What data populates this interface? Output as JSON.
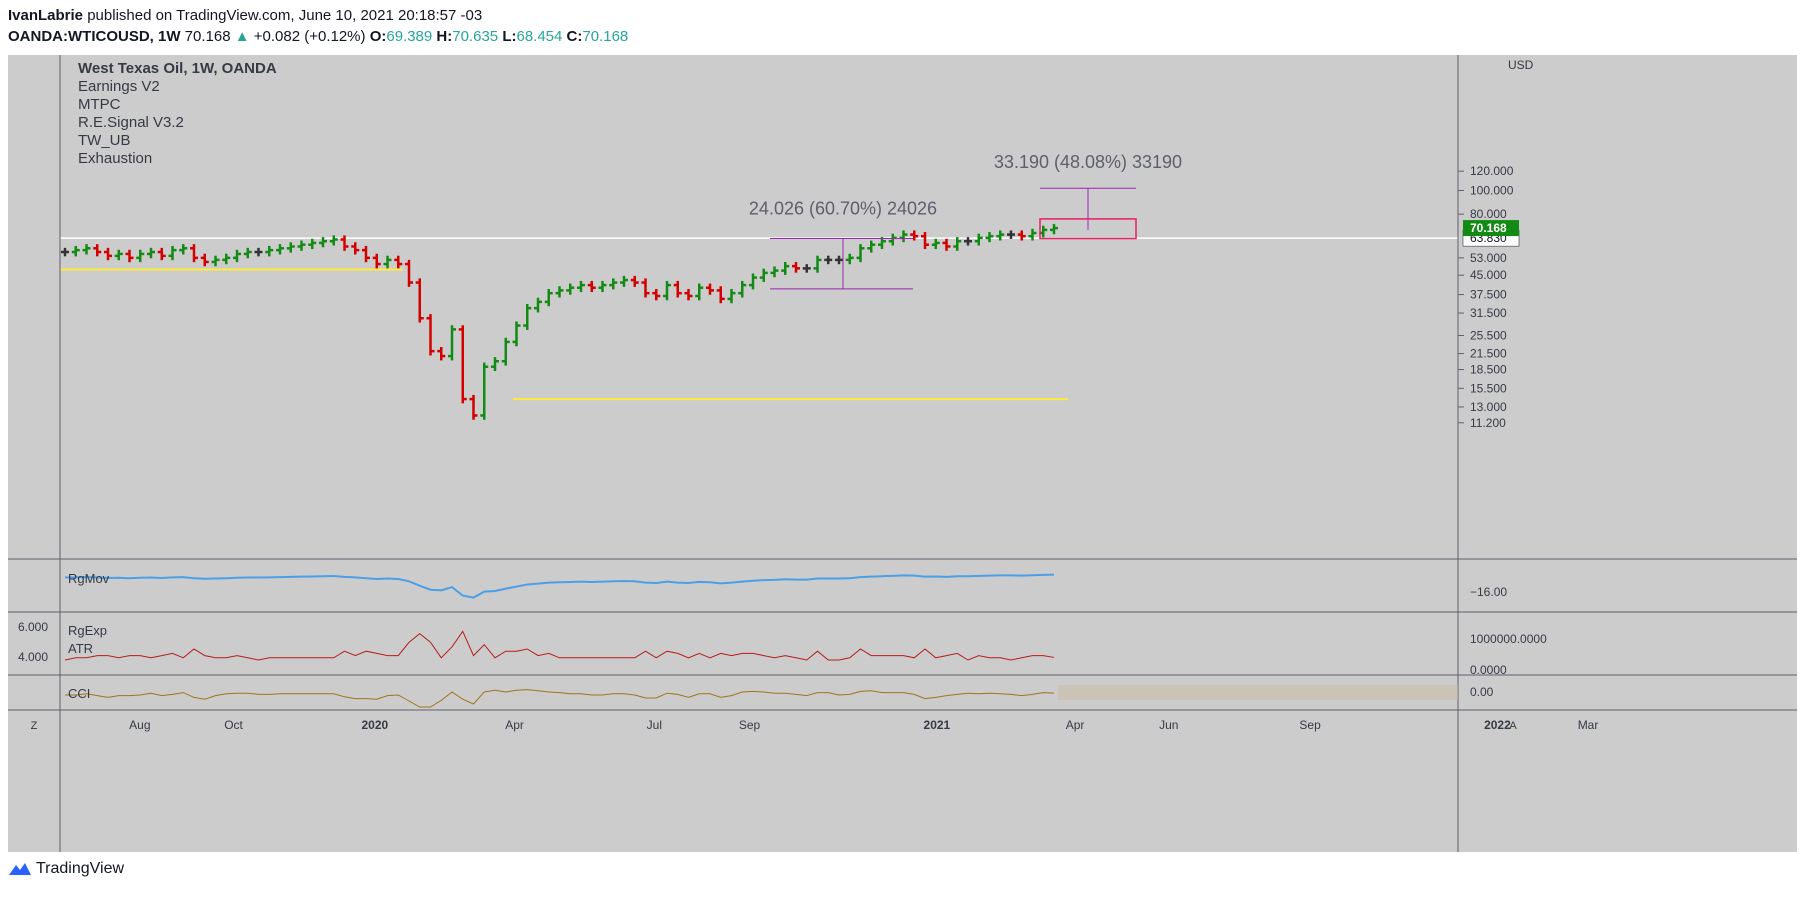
{
  "header": {
    "author": "IvanLabrie",
    "published_text": "published on TradingView.com, June 10, 2021 20:18:57 -03",
    "symbol": "OANDA:WTICOUSD, 1W",
    "last": "70.168",
    "change": "+0.082 (+0.12%)",
    "open_label": "O:",
    "open": "69.389",
    "high_label": "H:",
    "high": "70.635",
    "low_label": "L:",
    "low": "68.454",
    "close_label": "C:",
    "close": "70.168"
  },
  "legend": [
    "West Texas Oil, 1W, OANDA",
    "Earnings V2",
    "MTPC",
    "R.E.Signal V3.2",
    "TW_UB",
    "Exhaustion"
  ],
  "footer": {
    "brand": "TradingView"
  },
  "chart_data": {
    "type": "bar",
    "title": "West Texas Oil, 1W, OANDA",
    "currency_label": "USD",
    "price_scale": "log",
    "price_ticks": [
      11.2,
      13.0,
      15.5,
      18.5,
      21.5,
      25.5,
      31.5,
      37.5,
      45.0,
      53.0,
      63.83,
      80.0,
      100.0,
      120.0
    ],
    "price_tick_labels": [
      "11.200",
      "13.000",
      "15.500",
      "18.500",
      "21.500",
      "25.500",
      "31.500",
      "37.500",
      "45.000",
      "53.000",
      "63.830",
      "80.000",
      "100.000",
      "120.000"
    ],
    "last_price_label": "70.168",
    "horizontal_line_label": "63.830",
    "horizontal_line_value": 63.83,
    "time_labels": [
      "Aug",
      "Oct",
      "2020",
      "Apr",
      "Jul",
      "Sep",
      "2021",
      "Apr",
      "Jun",
      "Sep",
      "2022",
      "Mar"
    ],
    "time_label_dates": [
      "2019-08",
      "2019-10",
      "2020-01",
      "2020-04",
      "2020-07",
      "2020-09",
      "2021-01",
      "2021-04",
      "2021-06",
      "2021-09",
      "2022-01",
      "2022-03"
    ],
    "weekly_closes": [
      56,
      57,
      58,
      56,
      54,
      55,
      53,
      55,
      56,
      54,
      57,
      58,
      53,
      51,
      52,
      53,
      55,
      56,
      56,
      57,
      58,
      59,
      60,
      61,
      62,
      63,
      59,
      57,
      53,
      50,
      52,
      50,
      42,
      30,
      22,
      21,
      27,
      14,
      12,
      19,
      20,
      24,
      28,
      33,
      35,
      38,
      39,
      40,
      41,
      40,
      41,
      42,
      43,
      42,
      38,
      37,
      41,
      38,
      37,
      40,
      39,
      36,
      38,
      41,
      44,
      46,
      47,
      49,
      48,
      48,
      52,
      52,
      52,
      53,
      58,
      60,
      62,
      64,
      66,
      65,
      60,
      61,
      59,
      62,
      62,
      64,
      65,
      66,
      66,
      65,
      67,
      69,
      70.168
    ],
    "measurements": [
      {
        "label": "24.026 (60.70%) 24026",
        "from": 39.58,
        "to": 63.6
      },
      {
        "label": "33.190 (48.08%) 33190",
        "from": 69.0,
        "to": 102.2
      }
    ],
    "support_lines": [
      47.5,
      14.0
    ],
    "indicators": [
      {
        "name": "RgMov",
        "tick_label": "−16.00"
      },
      {
        "name": "RgExp",
        "tick_labels": [
          "6.000",
          "4.000"
        ],
        "right_tick_labels": [
          "1000000.0000",
          "0.0000"
        ]
      },
      {
        "name": "ATR"
      },
      {
        "name": "CCI",
        "tick_label": "0.00"
      }
    ],
    "colors": {
      "up": "#138a13",
      "down": "#d30000",
      "neutral": "#333333",
      "sma": "#ffeb3b",
      "measure": "#9c27b0",
      "target_box": "#e91e63",
      "rgmov": "#4a9fe8",
      "atr": "#b71c1c",
      "cci": "#a0731f"
    }
  }
}
